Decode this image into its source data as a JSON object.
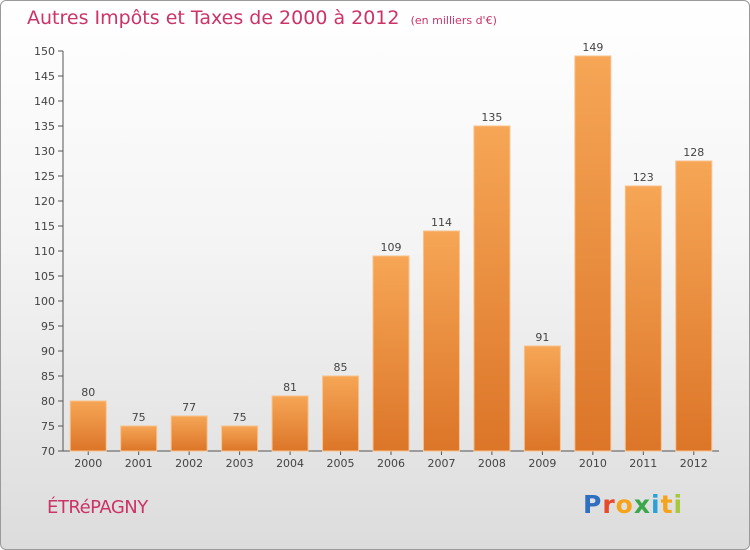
{
  "chart_data": {
    "type": "bar",
    "title": "Autres Impôts et Taxes de 2000 à 2012",
    "subtitle": "(en milliers d'€)",
    "categories": [
      "2000",
      "2001",
      "2002",
      "2003",
      "2004",
      "2005",
      "2006",
      "2007",
      "2008",
      "2009",
      "2010",
      "2011",
      "2012"
    ],
    "values": [
      80,
      75,
      77,
      75,
      81,
      85,
      109,
      114,
      135,
      91,
      149,
      123,
      128
    ],
    "ylim": [
      70,
      150
    ],
    "yticks": [
      70,
      75,
      80,
      85,
      90,
      95,
      100,
      105,
      110,
      115,
      120,
      125,
      130,
      135,
      140,
      145,
      150
    ],
    "grid": false,
    "bar_color": "#f0943a"
  },
  "footer": {
    "city": "ÉTRéPAGNY",
    "logo_letters": [
      {
        "ch": "P",
        "color": "#2f6fc0"
      },
      {
        "ch": "r",
        "color": "#e84a2c"
      },
      {
        "ch": "o",
        "color": "#f4a41a"
      },
      {
        "ch": "x",
        "color": "#3aa84a"
      },
      {
        "ch": "i",
        "color": "#2aa2d6"
      },
      {
        "ch": "t",
        "color": "#f4a41a"
      },
      {
        "ch": "i",
        "color": "#a5c93a"
      }
    ]
  },
  "colors": {
    "title": "#cc3366",
    "bar_light": "#f6a656",
    "bar_dark": "#d9742a"
  }
}
